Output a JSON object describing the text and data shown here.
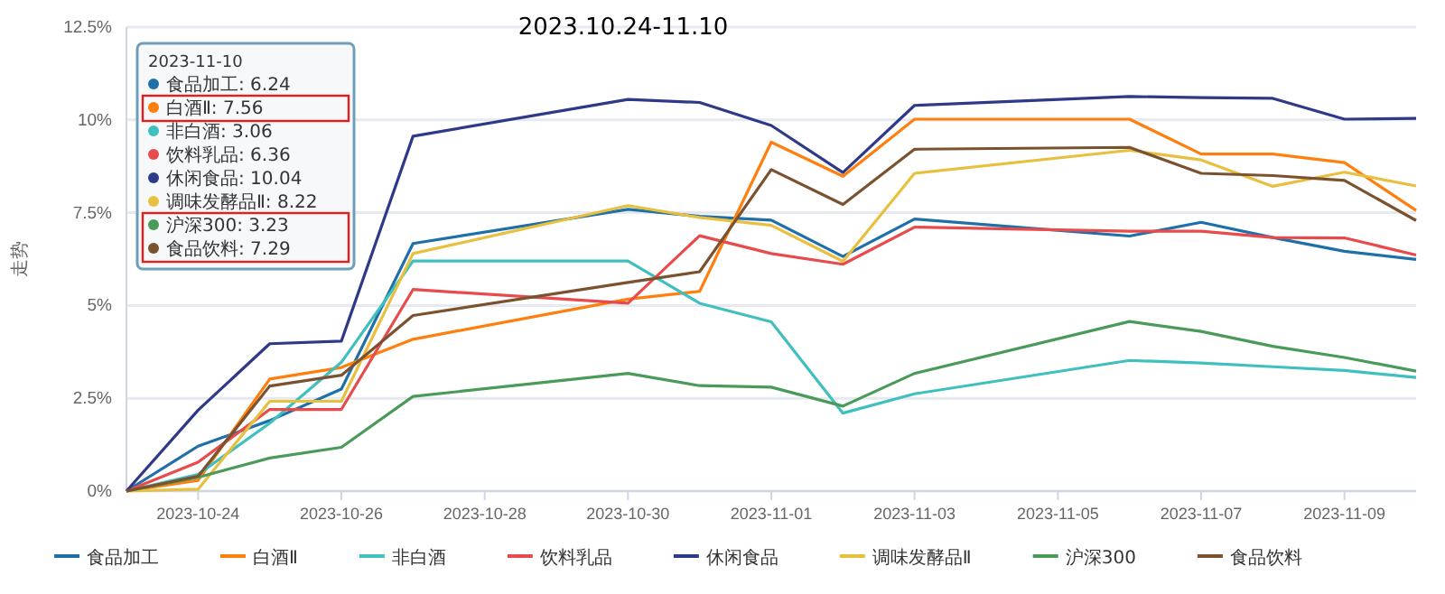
{
  "chart_data": {
    "type": "line",
    "title": "2023.10.24-11.10",
    "ylabel": "走势",
    "x": [
      "2023-10-23",
      "2023-10-24",
      "2023-10-25",
      "2023-10-26",
      "2023-10-27",
      "2023-10-30",
      "2023-10-31",
      "2023-11-01",
      "2023-11-02",
      "2023-11-03",
      "2023-11-06",
      "2023-11-07",
      "2023-11-08",
      "2023-11-09",
      "2023-11-10"
    ],
    "xlim": [
      "2023-10-23",
      "2023-11-10"
    ],
    "xticks": [
      {
        "value": "2023-10-24",
        "label": "2023-10-24"
      },
      {
        "value": "2023-10-26",
        "label": "2023-10-26"
      },
      {
        "value": "2023-10-28",
        "label": "2023-10-28"
      },
      {
        "value": "2023-10-30",
        "label": "2023-10-30"
      },
      {
        "value": "2023-11-01",
        "label": "2023-11-01"
      },
      {
        "value": "2023-11-03",
        "label": "2023-11-03"
      },
      {
        "value": "2023-11-05",
        "label": "2023-11-05"
      },
      {
        "value": "2023-11-07",
        "label": "2023-11-07"
      },
      {
        "value": "2023-11-09",
        "label": "2023-11-09"
      }
    ],
    "ylim": [
      0,
      12.5
    ],
    "yticks": [
      {
        "value": 0,
        "label": "0%"
      },
      {
        "value": 2.5,
        "label": "2.5%"
      },
      {
        "value": 5,
        "label": "5%"
      },
      {
        "value": 7.5,
        "label": "7.5%"
      },
      {
        "value": 10,
        "label": "10%"
      },
      {
        "value": 12.5,
        "label": "12.5%"
      }
    ],
    "grid": "y",
    "legend": "bottom",
    "marker": "none",
    "line_style": "solid",
    "series": [
      {
        "name": "食品加工",
        "color": "#1f6fa8",
        "values": [
          0,
          1.21,
          1.9,
          2.75,
          6.67,
          7.59,
          7.4,
          7.3,
          6.32,
          7.33,
          6.87,
          7.24,
          6.83,
          6.46,
          6.24
        ]
      },
      {
        "name": "白酒Ⅱ",
        "color": "#ff7f0e",
        "values": [
          0,
          0.29,
          3.02,
          3.33,
          4.09,
          5.17,
          5.38,
          9.4,
          8.48,
          10.02,
          10.02,
          9.08,
          9.08,
          8.85,
          7.56
        ]
      },
      {
        "name": "非白酒",
        "color": "#40bfbf",
        "values": [
          0,
          0.45,
          1.83,
          3.47,
          6.2,
          6.2,
          5.06,
          4.56,
          2.1,
          2.62,
          3.52,
          3.45,
          3.35,
          3.25,
          3.06
        ]
      },
      {
        "name": "饮料乳品",
        "color": "#e84b4b",
        "values": [
          0,
          0.78,
          2.2,
          2.2,
          5.43,
          5.06,
          6.88,
          6.4,
          6.11,
          7.11,
          7.0,
          7.0,
          6.83,
          6.82,
          6.36
        ]
      },
      {
        "name": "休闲食品",
        "color": "#2e3a87",
        "values": [
          0,
          2.18,
          3.97,
          4.04,
          9.56,
          10.55,
          10.47,
          9.85,
          8.58,
          10.39,
          10.63,
          10.6,
          10.58,
          10.02,
          10.04
        ]
      },
      {
        "name": "调味发酵品Ⅱ",
        "color": "#e8c040",
        "values": [
          0,
          0.05,
          2.42,
          2.42,
          6.4,
          7.69,
          7.37,
          7.16,
          6.19,
          8.56,
          9.18,
          8.92,
          8.21,
          8.59,
          8.22
        ]
      },
      {
        "name": "沪深300",
        "color": "#4a9a5a",
        "values": [
          0,
          0.37,
          0.89,
          1.18,
          2.55,
          3.17,
          2.84,
          2.8,
          2.29,
          3.17,
          4.57,
          4.3,
          3.9,
          3.6,
          3.23
        ]
      },
      {
        "name": "食品饮料",
        "color": "#7a5230",
        "values": [
          0,
          0.4,
          2.83,
          3.12,
          4.73,
          5.62,
          5.91,
          8.66,
          7.72,
          9.21,
          9.26,
          8.56,
          8.5,
          8.37,
          7.29
        ]
      }
    ],
    "annotations": [
      "2023-11-10",
      "食品加工: 6.24",
      "白酒Ⅱ: 7.56",
      "非白酒: 3.06",
      "饮料乳品: 6.36",
      "休闲食品: 10.04",
      "调味发酵品Ⅱ: 8.22",
      "沪深300: 3.23",
      "食品饮料: 7.29"
    ]
  }
}
